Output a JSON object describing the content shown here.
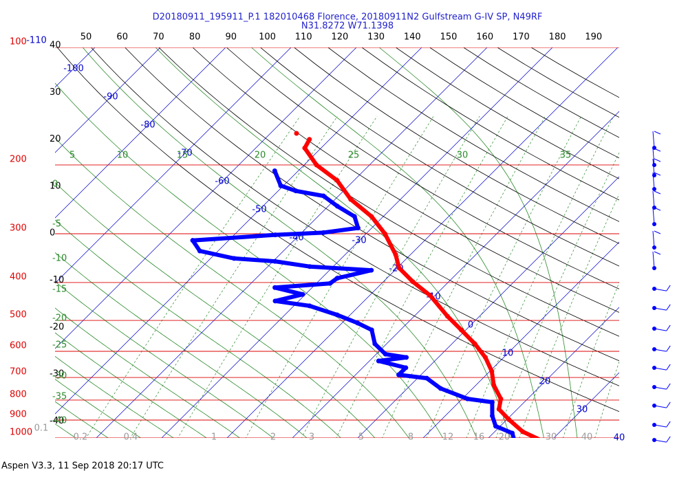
{
  "chart_data": {
    "type": "skewt",
    "title": "D20180911_195911_P.1 182010468 Florence, 20180911N2 Gulfstream G-IV SP, N49RF",
    "subtitle": "N31.8272 W71.1398",
    "footer": "Aspen V3.3, 11 Sep 2018  20:17 UTC",
    "ylim": [
      100,
      1000
    ],
    "log_y": true,
    "pressure_ticks": [
      100,
      200,
      300,
      400,
      500,
      600,
      700,
      800,
      900,
      1000
    ],
    "theta_ticks": [
      50,
      60,
      70,
      80,
      90,
      100,
      110,
      120,
      130,
      140,
      150,
      160,
      170,
      180,
      190
    ],
    "isotherm_ticks": [
      -110,
      -100,
      -90,
      -80,
      -70,
      -60,
      -50,
      -40,
      -30,
      -20,
      -10,
      0,
      10,
      20,
      30,
      40
    ],
    "left_ticks": [
      40,
      30,
      20,
      10,
      0,
      -10,
      -20,
      -30,
      -40
    ],
    "moist_top_ticks": [
      5,
      10,
      15,
      20,
      25,
      30,
      35
    ],
    "moist_left_ticks": [
      0,
      -5,
      -10,
      -15,
      -20,
      -25,
      -30,
      -35,
      -40
    ],
    "mixing_ratio_ticks": [
      0.1,
      0.2,
      0.4,
      1,
      2,
      3,
      5,
      8,
      12,
      16,
      20,
      30,
      40
    ],
    "series": [
      {
        "color": "#ff0000",
        "pressure": [
          166,
          null,
          172,
          181,
          200,
          219,
          245,
          271,
          300,
          339,
          367,
          398,
          432,
          488,
          529,
          574,
          622,
          675,
          732,
          794,
          844,
          897,
          964,
          1020
        ],
        "values": [
          -56,
          null,
          -53.1,
          -52.5,
          -48.1,
          -42.6,
          -37.6,
          -31.8,
          -27.1,
          -22.3,
          -19.7,
          -15.5,
          -10.7,
          -4.9,
          -0.7,
          3.5,
          7.2,
          10.3,
          12.7,
          15.9,
          17.2,
          20.3,
          24.3,
          28.9
        ]
      },
      {
        "color": "#0000ff",
        "pressure": [
          207,
          226,
          233,
          240,
          255,
          271,
          290,
          298,
          302,
          312,
          332,
          347,
          353,
          364,
          372,
          390,
          402,
          412,
          429,
          446,
          459,
          484,
          508,
          529,
          574,
          610,
          622,
          635,
          661,
          689,
          703,
          747,
          794,
          810,
          878,
          933,
          972,
          1020
        ],
        "values": [
          -53.6,
          -50.4,
          -47.3,
          -42.3,
          -38.6,
          -34.4,
          -32.1,
          -36.7,
          -43.7,
          -55.5,
          -52.8,
          -46.4,
          -39.7,
          -33.6,
          -23.6,
          -27.6,
          -27.9,
          -35.7,
          -30.4,
          -33.6,
          -27.6,
          -22,
          -17.6,
          -14.4,
          -11.8,
          -8.6,
          -4.9,
          -8.6,
          -3.4,
          -3.4,
          1.4,
          5.1,
          10.8,
          15.1,
          17.2,
          19.3,
          22.9,
          24.5
        ]
      }
    ]
  }
}
